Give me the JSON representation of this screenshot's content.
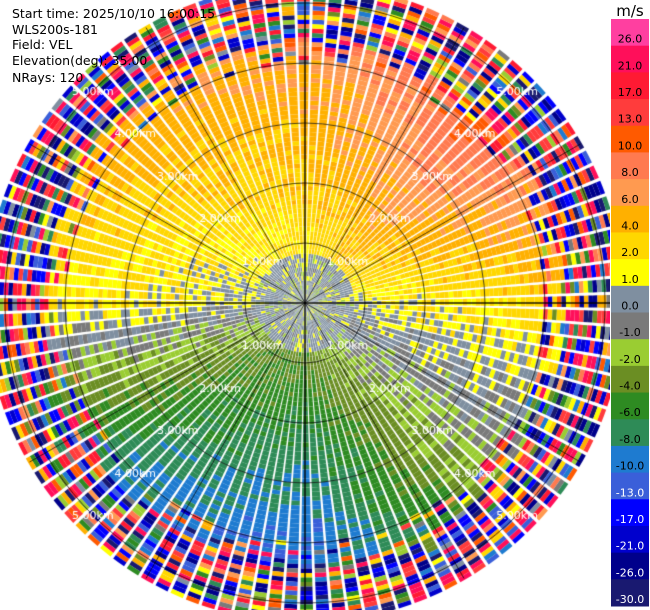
{
  "info": {
    "start_time": "Start time: 2025/10/10 16:00:15",
    "instrument": "WLS200s-181",
    "field": "Field: VEL",
    "elevation": "Elevation(deg): 35.00",
    "nrays": "NRays: 120"
  },
  "colorbar": {
    "unit": "m/s",
    "ticks": [
      "26.0",
      "21.0",
      "17.0",
      "13.0",
      "10.0",
      "8.0",
      "6.0",
      "4.0",
      "2.0",
      "1.0",
      "0.0",
      "-1.0",
      "-2.0",
      "-4.0",
      "-6.0",
      "-8.0",
      "-10.0",
      "-13.0",
      "-17.0",
      "-21.0",
      "-26.0",
      "-30.0"
    ],
    "colors": [
      "#ff3fa0",
      "#ff0f5a",
      "#ff1a33",
      "#ff3c3c",
      "#ff5a00",
      "#ff7a50",
      "#ff9a50",
      "#ffb000",
      "#ffd700",
      "#ffff00",
      "#7f8fa0",
      "#7a7a7a",
      "#9acd32",
      "#6b8e23",
      "#2e8b22",
      "#2e8b57",
      "#1e7bd0",
      "#3a5fd9",
      "#0000ff",
      "#0000cd",
      "#00008b",
      "#191970"
    ]
  },
  "chart_data": {
    "type": "heatmap",
    "projection": "polar PPI",
    "field": "VEL",
    "unit": "m/s",
    "nrays": 120,
    "elevation_deg": 35.0,
    "range_rings_km": [
      1.0,
      2.0,
      3.0,
      4.0,
      5.0
    ],
    "ring_labels": [
      "1.00km",
      "2.00km",
      "3.00km",
      "4.00km",
      "5.00km"
    ],
    "ring_label_bearings": [
      "NW",
      "NE",
      "SW",
      "SE"
    ],
    "max_range_km": 5.3,
    "colorbar_range": [
      -30.0,
      26.0
    ],
    "velocity_pattern": {
      "inner_zone_km": [
        0.0,
        0.8
      ],
      "inner_zone_value": 0.0,
      "sector_values": [
        {
          "bearing": "N",
          "value": 6.0
        },
        {
          "bearing": "NE",
          "value": 10.0
        },
        {
          "bearing": "E",
          "value": 3.0
        },
        {
          "bearing": "SE",
          "value": -2.0
        },
        {
          "bearing": "S",
          "value": -10.0
        },
        {
          "bearing": "SW",
          "value": -8.0
        },
        {
          "bearing": "W",
          "value": 2.0
        },
        {
          "bearing": "NW",
          "value": 5.0
        }
      ],
      "noise_beyond_km": 4.3
    }
  }
}
